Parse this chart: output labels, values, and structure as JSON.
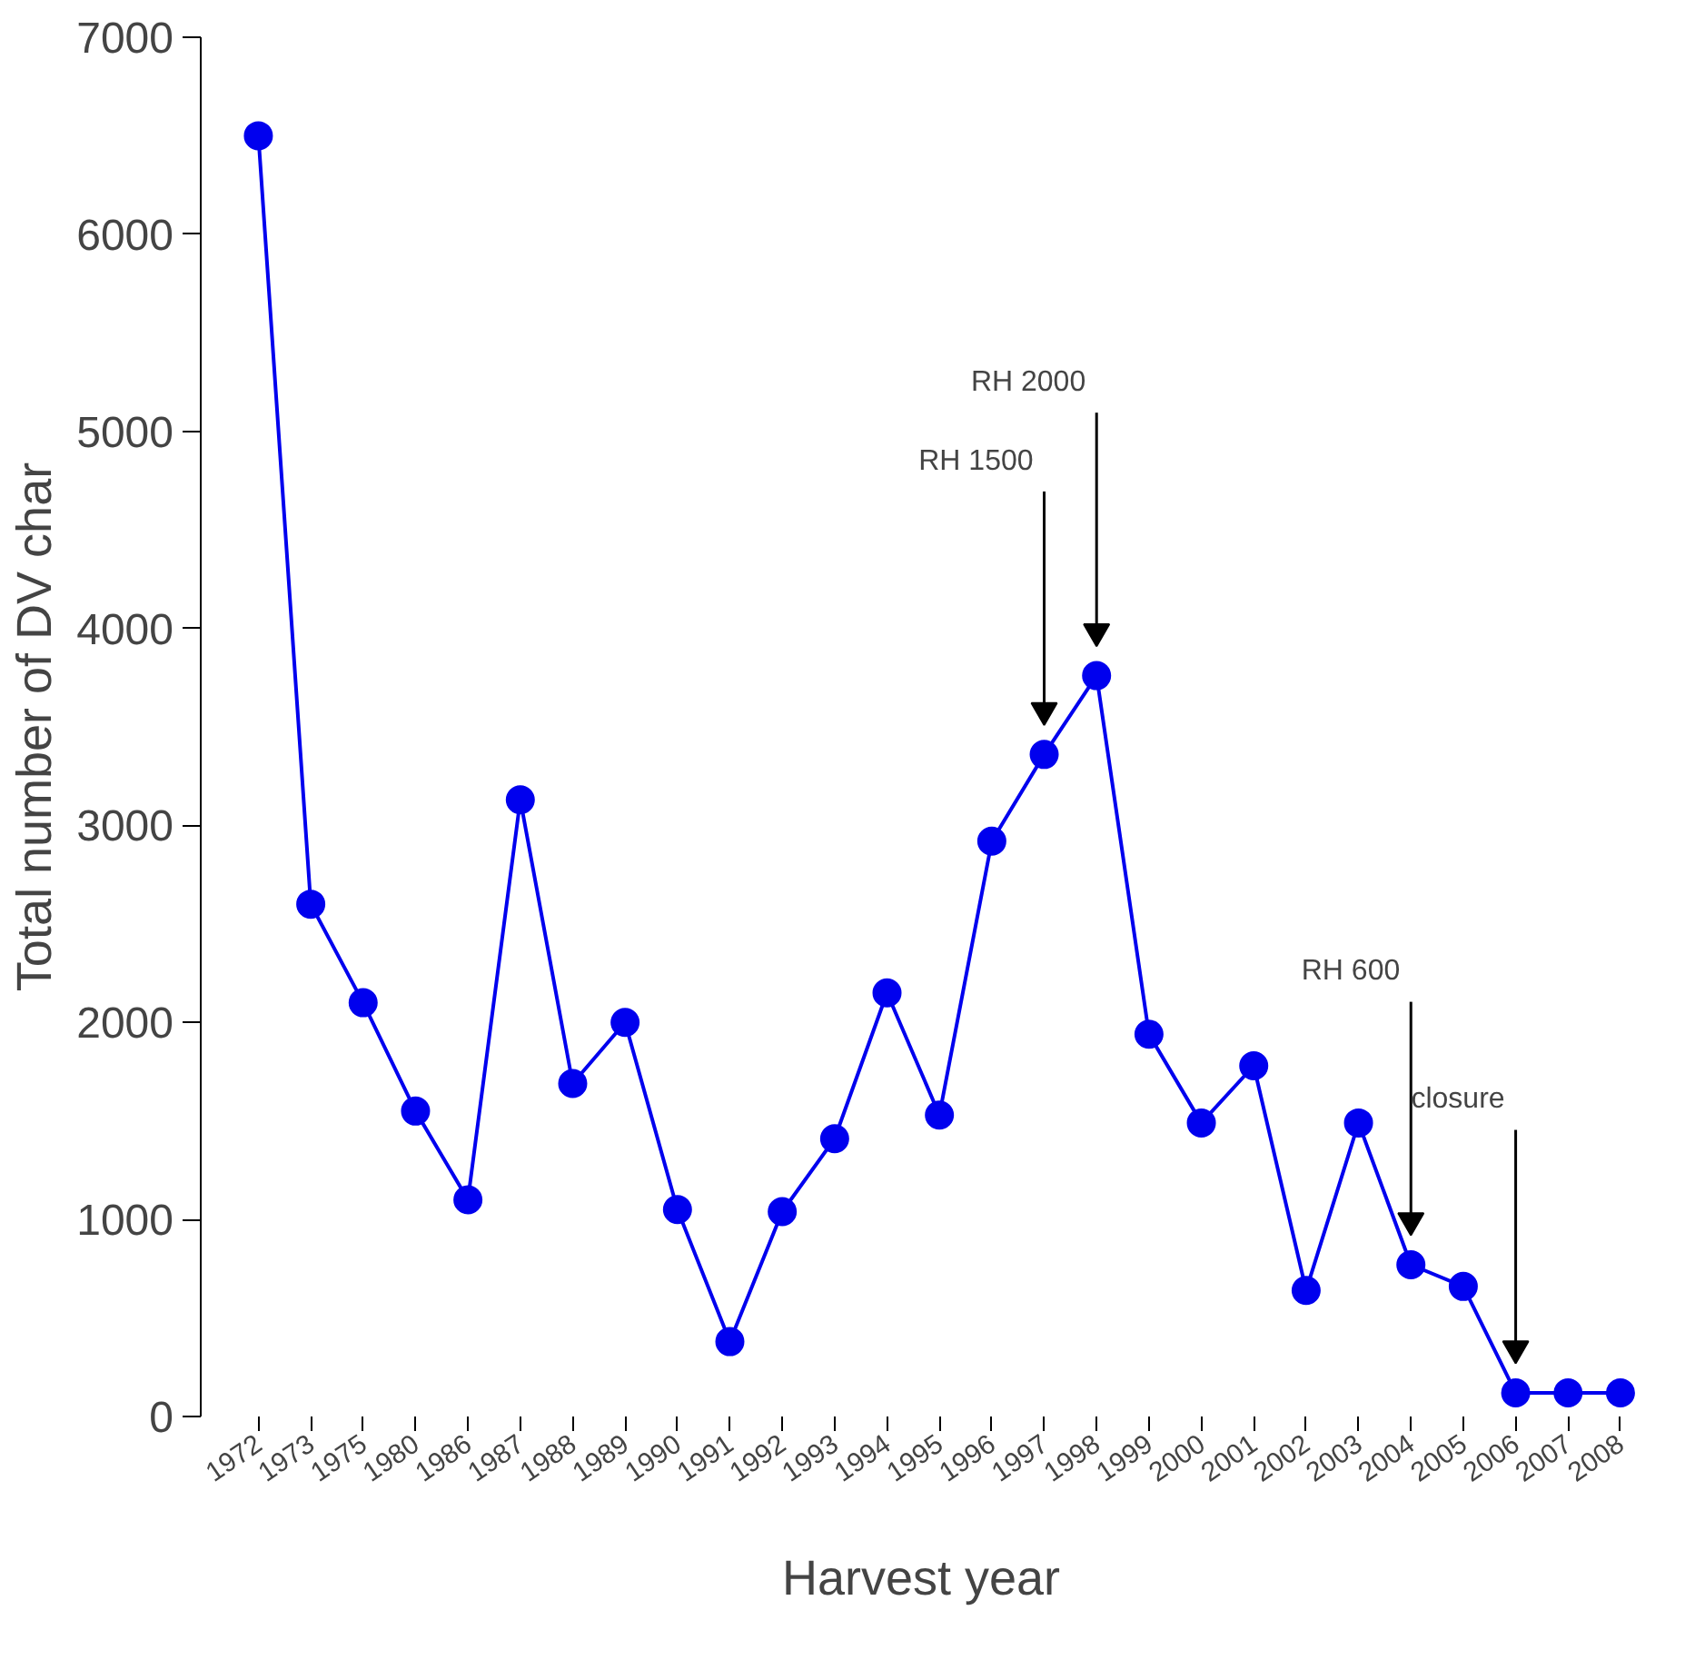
{
  "chart_data": {
    "type": "line",
    "xlabel": "Harvest year",
    "ylabel": "Total number of DV char",
    "categories": [
      "1972",
      "1973",
      "1975",
      "1980",
      "1986",
      "1987",
      "1988",
      "1989",
      "1990",
      "1991",
      "1992",
      "1993",
      "1994",
      "1995",
      "1996",
      "1997",
      "1998",
      "1999",
      "2000",
      "2001",
      "2002",
      "2003",
      "2004",
      "2005",
      "2006",
      "2007",
      "2008"
    ],
    "series": [
      {
        "color": "#0000ee",
        "values": [
          6500,
          2600,
          2100,
          1550,
          1100,
          3130,
          1690,
          2000,
          1050,
          380,
          1040,
          1410,
          2150,
          1530,
          2920,
          3360,
          3760,
          1940,
          1490,
          1780,
          640,
          1490,
          770,
          660,
          120,
          120,
          120
        ]
      }
    ],
    "ylim": [
      0,
      7000
    ],
    "yticks": [
      0,
      1000,
      2000,
      3000,
      4000,
      5000,
      6000,
      7000
    ],
    "grid": false,
    "marker": "circle",
    "line_style": "solid",
    "annotations": [
      "RH 1500",
      "RH 2000",
      "RH 600",
      "closure"
    ]
  }
}
